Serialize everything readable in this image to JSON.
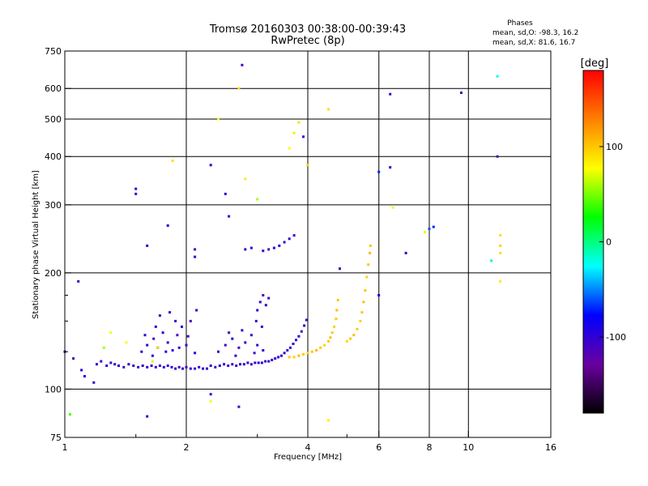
{
  "header": {
    "title_line1": "Tromsø 20160303 00:38:00-00:39:43",
    "title_line2": "RwPretec (8p)"
  },
  "phase_stats": {
    "heading": "Phases",
    "line_o": "mean, sd,O: -98.3, 16.2",
    "line_x": "mean, sd,X:  81.6, 16.7"
  },
  "colorbar": {
    "label": "[deg]",
    "ticks": [
      {
        "value": 100,
        "label": "100"
      },
      {
        "value": 0,
        "label": "0"
      },
      {
        "value": -100,
        "label": "-100"
      }
    ],
    "range": [
      -180,
      180
    ],
    "colors": [
      "#000000",
      "#6a00a0",
      "#0000ff",
      "#00ffff",
      "#00ff00",
      "#ffff00",
      "#ff8000",
      "#ff0000"
    ]
  },
  "chart_data": {
    "type": "scatter",
    "title": "Tromsø 20160303 00:38:00-00:39:43",
    "subtitle": "RwPretec (8p)",
    "xlabel": "Frequency [MHz]",
    "ylabel": "Stationary phase Virtual Height [km]",
    "xscale": "log",
    "yscale": "log",
    "xlim": [
      1,
      16
    ],
    "ylim": [
      75,
      750
    ],
    "grid": true,
    "x_ticks": [
      {
        "value": 1,
        "label": "1"
      },
      {
        "value": 2,
        "label": "2"
      },
      {
        "value": 4,
        "label": "4"
      },
      {
        "value": 6,
        "label": "6"
      },
      {
        "value": 8,
        "label": "8"
      },
      {
        "value": 10,
        "label": "10"
      },
      {
        "value": 16,
        "label": "16"
      }
    ],
    "y_ticks": [
      {
        "value": 75,
        "label": "75"
      },
      {
        "value": 100,
        "label": "100"
      },
      {
        "value": 200,
        "label": "200"
      },
      {
        "value": 300,
        "label": "300"
      },
      {
        "value": 400,
        "label": "400"
      },
      {
        "value": 500,
        "label": "500"
      },
      {
        "value": 600,
        "label": "600"
      },
      {
        "value": 750,
        "label": "750"
      }
    ],
    "x_minor": [
      1.5,
      3,
      5
    ],
    "y_minor": [
      125,
      150,
      175
    ],
    "points": [
      [
        1.2,
        116,
        -100
      ],
      [
        1.23,
        118,
        -105
      ],
      [
        1.27,
        115,
        -95
      ],
      [
        1.3,
        117,
        -110
      ],
      [
        1.33,
        116,
        -100
      ],
      [
        1.36,
        115,
        -90
      ],
      [
        1.4,
        114,
        -105
      ],
      [
        1.44,
        116,
        -100
      ],
      [
        1.48,
        115,
        -95
      ],
      [
        1.52,
        114,
        -110
      ],
      [
        1.56,
        115,
        -100
      ],
      [
        1.6,
        114,
        -105
      ],
      [
        1.64,
        115,
        -95
      ],
      [
        1.68,
        114,
        -100
      ],
      [
        1.72,
        115,
        -110
      ],
      [
        1.76,
        114,
        -100
      ],
      [
        1.8,
        115,
        -105
      ],
      [
        1.84,
        114,
        -95
      ],
      [
        1.88,
        113,
        -100
      ],
      [
        1.92,
        114,
        -110
      ],
      [
        1.96,
        113,
        -100
      ],
      [
        2.0,
        114,
        -105
      ],
      [
        2.05,
        113,
        -95
      ],
      [
        2.1,
        113,
        -100
      ],
      [
        2.15,
        114,
        -110
      ],
      [
        2.2,
        113,
        -100
      ],
      [
        2.25,
        113,
        -105
      ],
      [
        2.3,
        115,
        -100
      ],
      [
        2.36,
        114,
        -110
      ],
      [
        2.42,
        115,
        -95
      ],
      [
        2.48,
        116,
        -100
      ],
      [
        2.54,
        115,
        -105
      ],
      [
        2.6,
        116,
        -100
      ],
      [
        2.66,
        115,
        -110
      ],
      [
        2.72,
        116,
        -95
      ],
      [
        2.78,
        116,
        -100
      ],
      [
        2.84,
        117,
        -105
      ],
      [
        2.9,
        116,
        -100
      ],
      [
        2.96,
        117,
        -110
      ],
      [
        3.02,
        117,
        -95
      ],
      [
        3.08,
        117,
        -100
      ],
      [
        3.14,
        118,
        -105
      ],
      [
        3.2,
        118,
        -100
      ],
      [
        3.26,
        119,
        -110
      ],
      [
        3.32,
        120,
        -95
      ],
      [
        3.38,
        121,
        -100
      ],
      [
        3.44,
        122,
        -105
      ],
      [
        3.5,
        124,
        -100
      ],
      [
        3.56,
        126,
        -110
      ],
      [
        3.62,
        128,
        -95
      ],
      [
        3.68,
        131,
        -100
      ],
      [
        3.74,
        134,
        -105
      ],
      [
        3.8,
        137,
        -100
      ],
      [
        3.86,
        141,
        -110
      ],
      [
        3.92,
        146,
        -95
      ],
      [
        3.97,
        151,
        -100
      ],
      [
        3.6,
        121,
        100
      ],
      [
        3.7,
        121,
        95
      ],
      [
        3.8,
        122,
        105
      ],
      [
        3.9,
        123,
        100
      ],
      [
        4.0,
        124,
        95
      ],
      [
        4.1,
        125,
        100
      ],
      [
        4.2,
        126,
        105
      ],
      [
        4.3,
        128,
        100
      ],
      [
        4.4,
        130,
        95
      ],
      [
        4.5,
        133,
        100
      ],
      [
        4.55,
        136,
        105
      ],
      [
        4.6,
        140,
        100
      ],
      [
        4.65,
        145,
        95
      ],
      [
        4.7,
        152,
        100
      ],
      [
        4.72,
        160,
        105
      ],
      [
        4.75,
        170,
        100
      ],
      [
        5.0,
        133,
        95
      ],
      [
        5.1,
        135,
        100
      ],
      [
        5.2,
        138,
        105
      ],
      [
        5.3,
        143,
        100
      ],
      [
        5.4,
        150,
        95
      ],
      [
        5.45,
        158,
        100
      ],
      [
        5.5,
        168,
        105
      ],
      [
        5.55,
        180,
        100
      ],
      [
        5.6,
        195,
        95
      ],
      [
        5.65,
        210,
        100
      ],
      [
        5.7,
        225,
        105
      ],
      [
        5.72,
        235,
        100
      ],
      [
        1.55,
        125,
        -100
      ],
      [
        1.6,
        130,
        -90
      ],
      [
        1.66,
        135,
        -110
      ],
      [
        1.7,
        128,
        -100
      ],
      [
        1.75,
        140,
        -95
      ],
      [
        1.8,
        132,
        -105
      ],
      [
        1.85,
        126,
        -100
      ],
      [
        1.9,
        138,
        -110
      ],
      [
        1.95,
        145,
        -90
      ],
      [
        2.0,
        130,
        -100
      ],
      [
        2.05,
        150,
        -105
      ],
      [
        2.1,
        124,
        -95
      ],
      [
        2.12,
        160,
        -100
      ],
      [
        1.72,
        155,
        -110
      ],
      [
        1.68,
        145,
        -100
      ],
      [
        1.78,
        125,
        -95
      ],
      [
        1.88,
        150,
        -105
      ],
      [
        1.92,
        128,
        -100
      ],
      [
        2.02,
        137,
        -110
      ],
      [
        1.82,
        158,
        -95
      ],
      [
        1.65,
        122,
        -100
      ],
      [
        1.58,
        138,
        -105
      ],
      [
        2.4,
        125,
        -100
      ],
      [
        2.5,
        130,
        -105
      ],
      [
        2.6,
        135,
        -95
      ],
      [
        2.7,
        128,
        -110
      ],
      [
        2.8,
        132,
        -100
      ],
      [
        2.9,
        138,
        -105
      ],
      [
        3.0,
        130,
        -95
      ],
      [
        3.1,
        126,
        -100
      ],
      [
        2.55,
        140,
        -110
      ],
      [
        2.75,
        142,
        -100
      ],
      [
        2.95,
        124,
        -105
      ],
      [
        2.65,
        122,
        -95
      ],
      [
        3.0,
        160,
        -100
      ],
      [
        3.05,
        168,
        -105
      ],
      [
        3.1,
        175,
        -110
      ],
      [
        3.15,
        165,
        -95
      ],
      [
        3.2,
        172,
        -100
      ],
      [
        2.98,
        150,
        -105
      ],
      [
        3.08,
        145,
        -100
      ],
      [
        3.2,
        230,
        -110
      ],
      [
        3.3,
        232,
        -100
      ],
      [
        3.4,
        235,
        -95
      ],
      [
        3.5,
        240,
        -105
      ],
      [
        3.6,
        245,
        -100
      ],
      [
        3.7,
        250,
        -110
      ],
      [
        3.1,
        228,
        -100
      ],
      [
        2.8,
        230,
        -95
      ],
      [
        2.9,
        232,
        -105
      ],
      [
        1.0,
        125,
        -100
      ],
      [
        1.05,
        120,
        -110
      ],
      [
        1.1,
        112,
        -95
      ],
      [
        1.12,
        108,
        -100
      ],
      [
        1.25,
        128,
        60
      ],
      [
        1.3,
        140,
        75
      ],
      [
        1.42,
        132,
        80
      ],
      [
        1.65,
        118,
        85
      ],
      [
        1.7,
        128,
        90
      ],
      [
        1.18,
        104,
        -100
      ],
      [
        1.08,
        190,
        -105
      ],
      [
        1.5,
        320,
        -110
      ],
      [
        1.5,
        330,
        -100
      ],
      [
        1.6,
        235,
        -95
      ],
      [
        1.8,
        265,
        -105
      ],
      [
        1.85,
        390,
        90
      ],
      [
        2.1,
        220,
        -100
      ],
      [
        2.1,
        230,
        -110
      ],
      [
        2.3,
        380,
        -95
      ],
      [
        2.4,
        500,
        80
      ],
      [
        2.5,
        320,
        -100
      ],
      [
        2.55,
        280,
        -105
      ],
      [
        2.7,
        600,
        90
      ],
      [
        2.75,
        690,
        -110
      ],
      [
        2.8,
        350,
        85
      ],
      [
        3.0,
        310,
        60
      ],
      [
        3.6,
        420,
        80
      ],
      [
        3.7,
        460,
        85
      ],
      [
        3.8,
        490,
        90
      ],
      [
        3.9,
        450,
        -110
      ],
      [
        4.0,
        380,
        95
      ],
      [
        4.5,
        530,
        90
      ],
      [
        4.5,
        83,
        85
      ],
      [
        4.8,
        205,
        -100
      ],
      [
        6.0,
        365,
        -70
      ],
      [
        6.0,
        175,
        -80
      ],
      [
        6.4,
        580,
        -110
      ],
      [
        6.4,
        375,
        -105
      ],
      [
        6.5,
        295,
        80
      ],
      [
        7.0,
        225,
        -100
      ],
      [
        7.8,
        255,
        70
      ],
      [
        8.0,
        260,
        -60
      ],
      [
        8.2,
        263,
        -70
      ],
      [
        9.6,
        585,
        -110
      ],
      [
        11.4,
        215,
        -10
      ],
      [
        11.8,
        645,
        -20
      ],
      [
        11.8,
        400,
        -110
      ],
      [
        12.0,
        250,
        90
      ],
      [
        12.0,
        235,
        95
      ],
      [
        12.0,
        225,
        90
      ],
      [
        12.0,
        190,
        85
      ],
      [
        2.3,
        97,
        -100
      ],
      [
        2.3,
        93,
        75
      ],
      [
        2.7,
        90,
        -110
      ],
      [
        1.6,
        85,
        -105
      ],
      [
        1.03,
        86,
        40
      ]
    ]
  }
}
